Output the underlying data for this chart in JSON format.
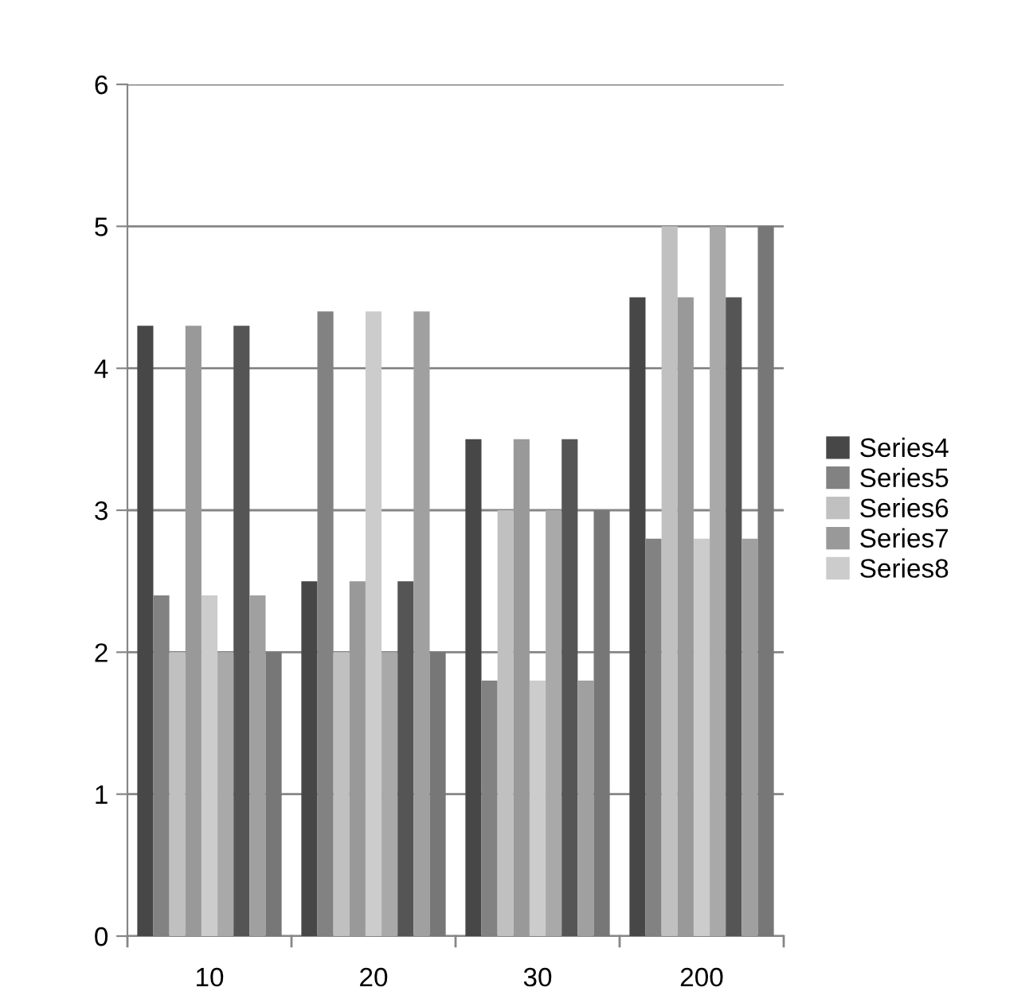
{
  "chart_data": {
    "type": "bar",
    "categories": [
      "10",
      "20",
      "30",
      "200"
    ],
    "series": [
      {
        "name": "Series4",
        "color": "#474747",
        "values": [
          4.3,
          2.5,
          3.5,
          4.5
        ]
      },
      {
        "name": "Series5",
        "color": "#828282",
        "values": [
          2.4,
          4.4,
          1.8,
          2.8
        ]
      },
      {
        "name": "Series6",
        "color": "#c0c0c0",
        "values": [
          2.0,
          2.0,
          3.0,
          5.0
        ]
      },
      {
        "name": "Series7",
        "color": "#999999",
        "values": [
          4.3,
          2.5,
          3.5,
          4.5
        ]
      },
      {
        "name": "Series8",
        "color": "#cccccc",
        "values": [
          2.4,
          4.4,
          1.8,
          2.8
        ]
      },
      {
        "color": "#a9a9a9",
        "values": [
          2.0,
          2.0,
          3.0,
          5.0
        ]
      },
      {
        "color": "#555555",
        "values": [
          4.3,
          2.5,
          3.5,
          4.5
        ]
      },
      {
        "color": "#a0a0a0",
        "values": [
          2.4,
          4.4,
          1.8,
          2.8
        ]
      },
      {
        "color": "#777777",
        "values": [
          2.0,
          2.0,
          3.0,
          5.0
        ]
      }
    ],
    "ylim": [
      0,
      6
    ],
    "yticks": [
      0,
      1,
      2,
      3,
      4,
      5,
      6
    ],
    "grid": "y",
    "legend": "right"
  }
}
